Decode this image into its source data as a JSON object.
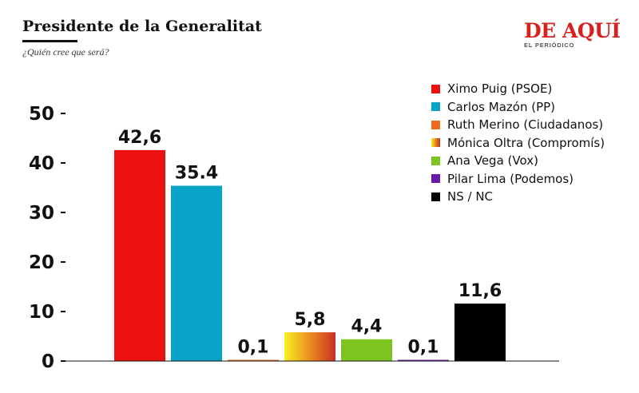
{
  "header": {
    "title": "Presidente de la Generalitat",
    "subtitle": "¿Quién cree que será?"
  },
  "logo": {
    "main": "DE AQUÍ",
    "sub": "EL PERIÓDICO"
  },
  "colors": {
    "logo_red": "#d8201c",
    "axis": "#111111"
  },
  "chart_data": {
    "type": "bar",
    "title": "Presidente de la Generalitat",
    "subtitle": "¿Quién cree que será?",
    "xlabel": "",
    "ylabel": "",
    "ylim": [
      0,
      50
    ],
    "yticks": [
      0,
      10,
      20,
      30,
      40,
      50
    ],
    "grid": false,
    "legend_position": "top-right",
    "categories": [
      "Ximo Puig (PSOE)",
      "Carlos Mazón (PP)",
      "Ruth Merino (Ciudadanos)",
      "Mónica Oltra (Compromís)",
      "Ana Vega (Vox)",
      "Pilar Lima (Podemos)",
      "NS / NC"
    ],
    "values": [
      42.6,
      35.4,
      0.1,
      5.8,
      4.4,
      0.1,
      11.6
    ],
    "value_labels": [
      "42,6",
      "35.4",
      "0,1",
      "5,8",
      "4,4",
      "0,1",
      "11,6"
    ],
    "colors": [
      "#ee1111",
      "#0aa2c6",
      "#ee6a1c",
      "gradient:#f8f021-#e8841f-#c83024",
      "#7cc521",
      "#6a1aa8",
      "#000000"
    ],
    "legend": [
      {
        "label": "Ximo Puig (PSOE)",
        "color": "#ee1111"
      },
      {
        "label": "Carlos Mazón (PP)",
        "color": "#0aa2c6"
      },
      {
        "label": "Ruth Merino (Ciudadanos)",
        "color": "#ee6a1c"
      },
      {
        "label": "Mónica Oltra (Compromís)",
        "color": "gradient:#f8f021-#e8841f-#c83024"
      },
      {
        "label": "Ana Vega (Vox)",
        "color": "#7cc521"
      },
      {
        "label": "Pilar Lima (Podemos)",
        "color": "#6a1aa8"
      },
      {
        "label": "NS / NC",
        "color": "#000000"
      }
    ]
  }
}
